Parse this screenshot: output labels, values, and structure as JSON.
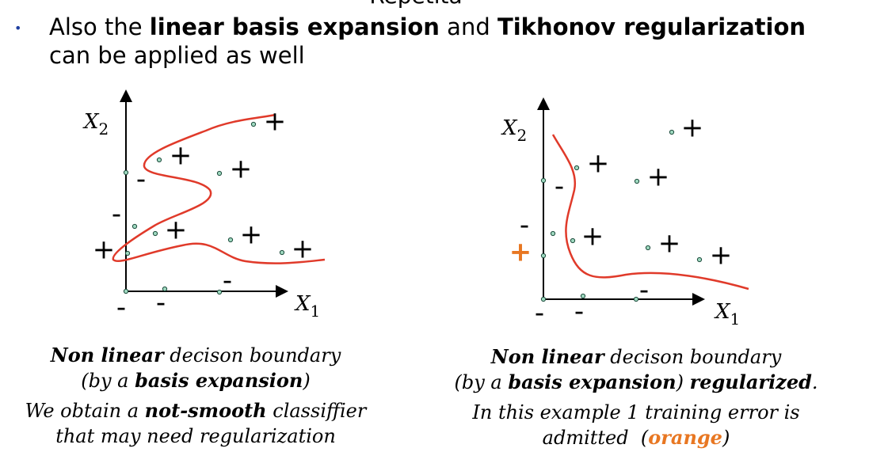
{
  "header": {
    "title": "Repetita"
  },
  "bullet": {
    "symbol": "•",
    "runs": [
      "Also the ",
      "linear basis expansion",
      " and ",
      "Tikhonov regularization",
      "can be applied as well"
    ]
  },
  "panels": [
    {
      "x_label": [
        "X",
        "1"
      ],
      "y_label": [
        "X",
        "2"
      ],
      "symbols": [
        "+",
        "+",
        "+",
        "-",
        "-",
        "+",
        "+",
        "+",
        "+",
        "-",
        "-",
        "-"
      ],
      "caption": [
        [
          "Non linear",
          " decison boundary"
        ],
        [
          "(by a ",
          "basis expansion",
          ")"
        ],
        [
          "We obtain a ",
          "not-smooth",
          " classiffier"
        ],
        [
          "that may need regularization"
        ]
      ]
    },
    {
      "x_label": [
        "X",
        "1"
      ],
      "y_label": [
        "X",
        "2"
      ],
      "symbols": [
        "+",
        "+",
        "+",
        "-",
        "-",
        "+",
        "+",
        "+",
        "+",
        "-",
        "-",
        "-"
      ],
      "caption": [
        [
          "Non linear",
          " decison boundary"
        ],
        [
          "(by a ",
          "basis expansion",
          ") ",
          "regularized",
          "."
        ],
        [
          "In this example 1 training error is"
        ],
        [
          "admitted  (",
          "orange",
          ")"
        ]
      ]
    }
  ]
}
